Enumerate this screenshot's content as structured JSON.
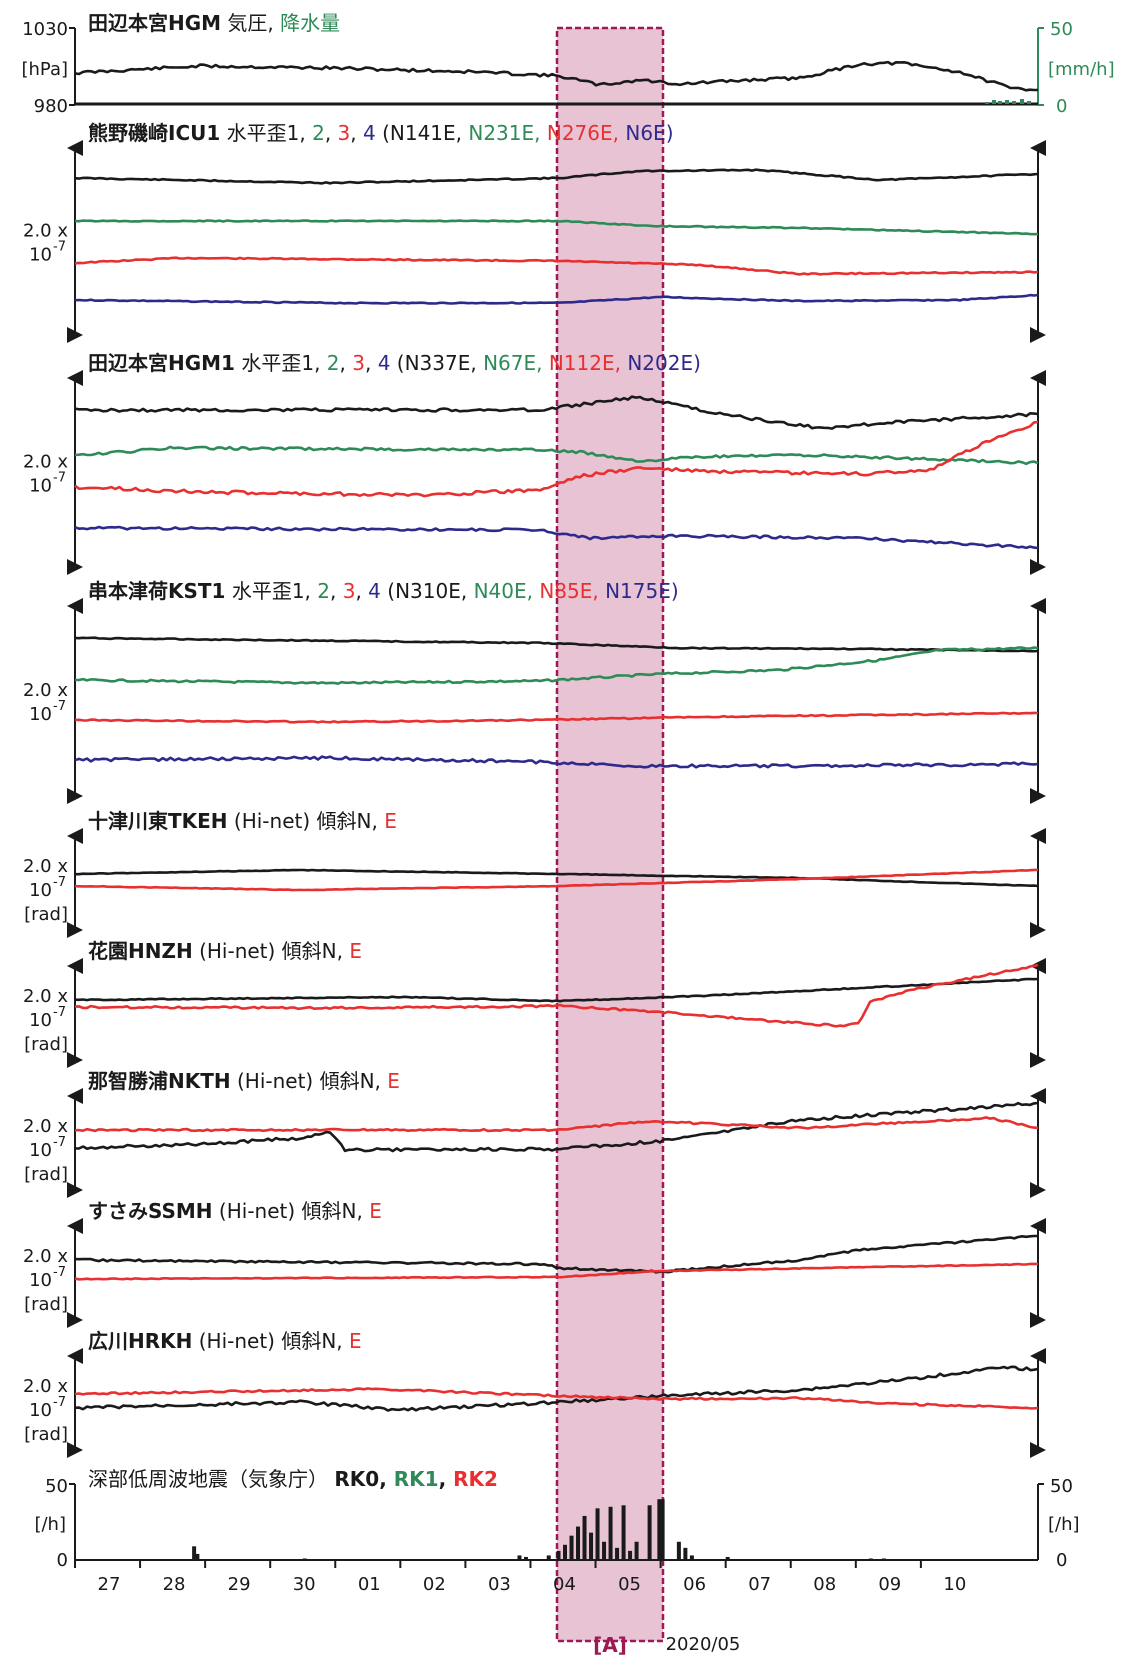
{
  "colors": {
    "black": "#1a1a1a",
    "green": "#2e8b57",
    "red": "#e83030",
    "blue": "#2e2a8c",
    "event_fill": "#e7c3d4",
    "event_border": "#9c1b55"
  },
  "chart_data": {
    "type": "line",
    "x_axis": {
      "unit": "2020/05",
      "ticks": [
        "27",
        "28",
        "29",
        "30",
        "01",
        "02",
        "03",
        "04",
        "05",
        "06",
        "07",
        "08",
        "09",
        "10"
      ],
      "year_month_label": "2020/05"
    },
    "event": {
      "label": "[A]"
    },
    "panels": [
      {
        "id": "pressure",
        "title_bold": "田辺本宮HGM",
        "title_rest": " 気圧, ",
        "title_green": "降水量",
        "left_ticks": [
          "1030",
          "980"
        ],
        "left_unit": "[hPa]",
        "right_ticks": [
          "50",
          "0"
        ],
        "right_unit": "[mm/h]"
      },
      {
        "id": "icu",
        "title_bold": "熊野磯崎ICU1",
        "title_rest": " 水平歪1, ",
        "nums": [
          "2",
          "3",
          "4"
        ],
        "azimuths": [
          "(N141E, ",
          "N231E, ",
          "N276E, ",
          "N6E)"
        ],
        "scale": [
          "2.0 x",
          "10",
          "-7"
        ]
      },
      {
        "id": "hgm",
        "title_bold": "田辺本宮HGM1",
        "title_rest": " 水平歪1, ",
        "nums": [
          "2",
          "3",
          "4"
        ],
        "azimuths": [
          "(N337E, ",
          "N67E, ",
          "N112E, ",
          "N202E)"
        ],
        "scale": [
          "2.0 x",
          "10",
          "-7"
        ]
      },
      {
        "id": "kst",
        "title_bold": "串本津荷KST1",
        "title_rest": " 水平歪1, ",
        "nums": [
          "2",
          "3",
          "4"
        ],
        "azimuths": [
          "(N310E, ",
          "N40E, ",
          "N85E, ",
          "N175E)"
        ],
        "scale": [
          "2.0 x",
          "10",
          "-7"
        ]
      },
      {
        "id": "tkeh",
        "title_bold": "十津川東TKEH",
        "title_rest": " (Hi-net) 傾斜N, ",
        "title_red": "E",
        "scale": [
          "2.0 x",
          "10",
          "-7",
          "[rad]"
        ]
      },
      {
        "id": "hnzh",
        "title_bold": "花園HNZH",
        "title_rest": " (Hi-net) 傾斜N, ",
        "title_red": "E",
        "scale": [
          "2.0 x",
          "10",
          "-7",
          "[rad]"
        ]
      },
      {
        "id": "nkth",
        "title_bold": "那智勝浦NKTH",
        "title_rest": " (Hi-net) 傾斜N, ",
        "title_red": "E",
        "scale": [
          "2.0 x",
          "10",
          "-7",
          "[rad]"
        ]
      },
      {
        "id": "ssmh",
        "title_bold": "すさみSSMH",
        "title_rest": " (Hi-net) 傾斜N, ",
        "title_red": "E",
        "scale": [
          "2.0 x",
          "10",
          "-7",
          "[rad]"
        ]
      },
      {
        "id": "hrkh",
        "title_bold": "広川HRKH",
        "title_rest": " (Hi-net) 傾斜N, ",
        "title_red": "E",
        "scale": [
          "2.0 x",
          "10",
          "-7",
          "[rad]"
        ]
      },
      {
        "id": "lfe",
        "title_plain": "深部低周波地震（気象庁）",
        "rk0": "RK0",
        "rk1": "RK1",
        "rk2": "RK2",
        "left_ticks": [
          "50",
          "0"
        ],
        "left_unit": "[/h]",
        "right_ticks": [
          "50",
          "0"
        ],
        "right_unit": "[/h]"
      }
    ],
    "lfe_counts_per_hour": [
      {
        "d": 1.8,
        "v": 9
      },
      {
        "d": 1.85,
        "v": 4
      },
      {
        "d": 3.5,
        "v": 1
      },
      {
        "d": 6.8,
        "v": 3
      },
      {
        "d": 6.9,
        "v": 2
      },
      {
        "d": 7.25,
        "v": 3
      },
      {
        "d": 7.4,
        "v": 6
      },
      {
        "d": 7.5,
        "v": 10
      },
      {
        "d": 7.6,
        "v": 16
      },
      {
        "d": 7.7,
        "v": 22
      },
      {
        "d": 7.8,
        "v": 29
      },
      {
        "d": 7.9,
        "v": 18
      },
      {
        "d": 8.0,
        "v": 34
      },
      {
        "d": 8.1,
        "v": 12
      },
      {
        "d": 8.2,
        "v": 35
      },
      {
        "d": 8.3,
        "v": 8
      },
      {
        "d": 8.4,
        "v": 36
      },
      {
        "d": 8.5,
        "v": 6
      },
      {
        "d": 8.6,
        "v": 12
      },
      {
        "d": 8.8,
        "v": 36
      },
      {
        "d": 8.95,
        "v": 40
      },
      {
        "d": 9.0,
        "v": 40
      },
      {
        "d": 9.25,
        "v": 12
      },
      {
        "d": 9.35,
        "v": 8
      },
      {
        "d": 9.45,
        "v": 3
      },
      {
        "d": 10.0,
        "v": 2
      },
      {
        "d": 12.2,
        "v": 1
      },
      {
        "d": 12.4,
        "v": 1
      }
    ]
  }
}
